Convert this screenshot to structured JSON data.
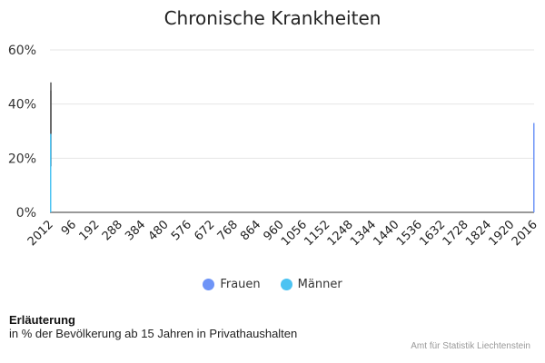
{
  "chart_data": {
    "type": "bar",
    "title": "Chronische Krankheiten",
    "xlabel": "",
    "ylabel": "",
    "ylim": [
      0,
      60
    ],
    "y_ticks": [
      "0%",
      "20%",
      "40%",
      "60%"
    ],
    "y_tick_values": [
      0,
      20,
      40,
      60
    ],
    "x_ticks": [
      "2012",
      "96",
      "192",
      "288",
      "384",
      "480",
      "576",
      "672",
      "768",
      "864",
      "960",
      "1056",
      "1152",
      "1248",
      "1344",
      "1440",
      "1536",
      "1632",
      "1728",
      "1824",
      "1920",
      "2016"
    ],
    "x_range": [
      0,
      2016
    ],
    "series": [
      {
        "name": "Frauen",
        "color": "#6e94f7",
        "points": [
          {
            "x": 0,
            "y": 17
          },
          {
            "x": 2016,
            "y": 33
          }
        ]
      },
      {
        "name": "Männer",
        "color": "#4cc3f2",
        "points": [
          {
            "x": 0,
            "y": 29
          }
        ]
      }
    ],
    "error_bars": [
      {
        "x": 0,
        "low": 17,
        "high": 48
      },
      {
        "x": 0,
        "low": 29,
        "high": 45
      }
    ],
    "legend_position": "bottom",
    "grid": true
  },
  "note": {
    "title": "Erläuterung",
    "text": "in % der Bevölkerung ab 15 Jahren in Privathaushalten"
  },
  "source": "Amt für Statistik Liechtenstein"
}
